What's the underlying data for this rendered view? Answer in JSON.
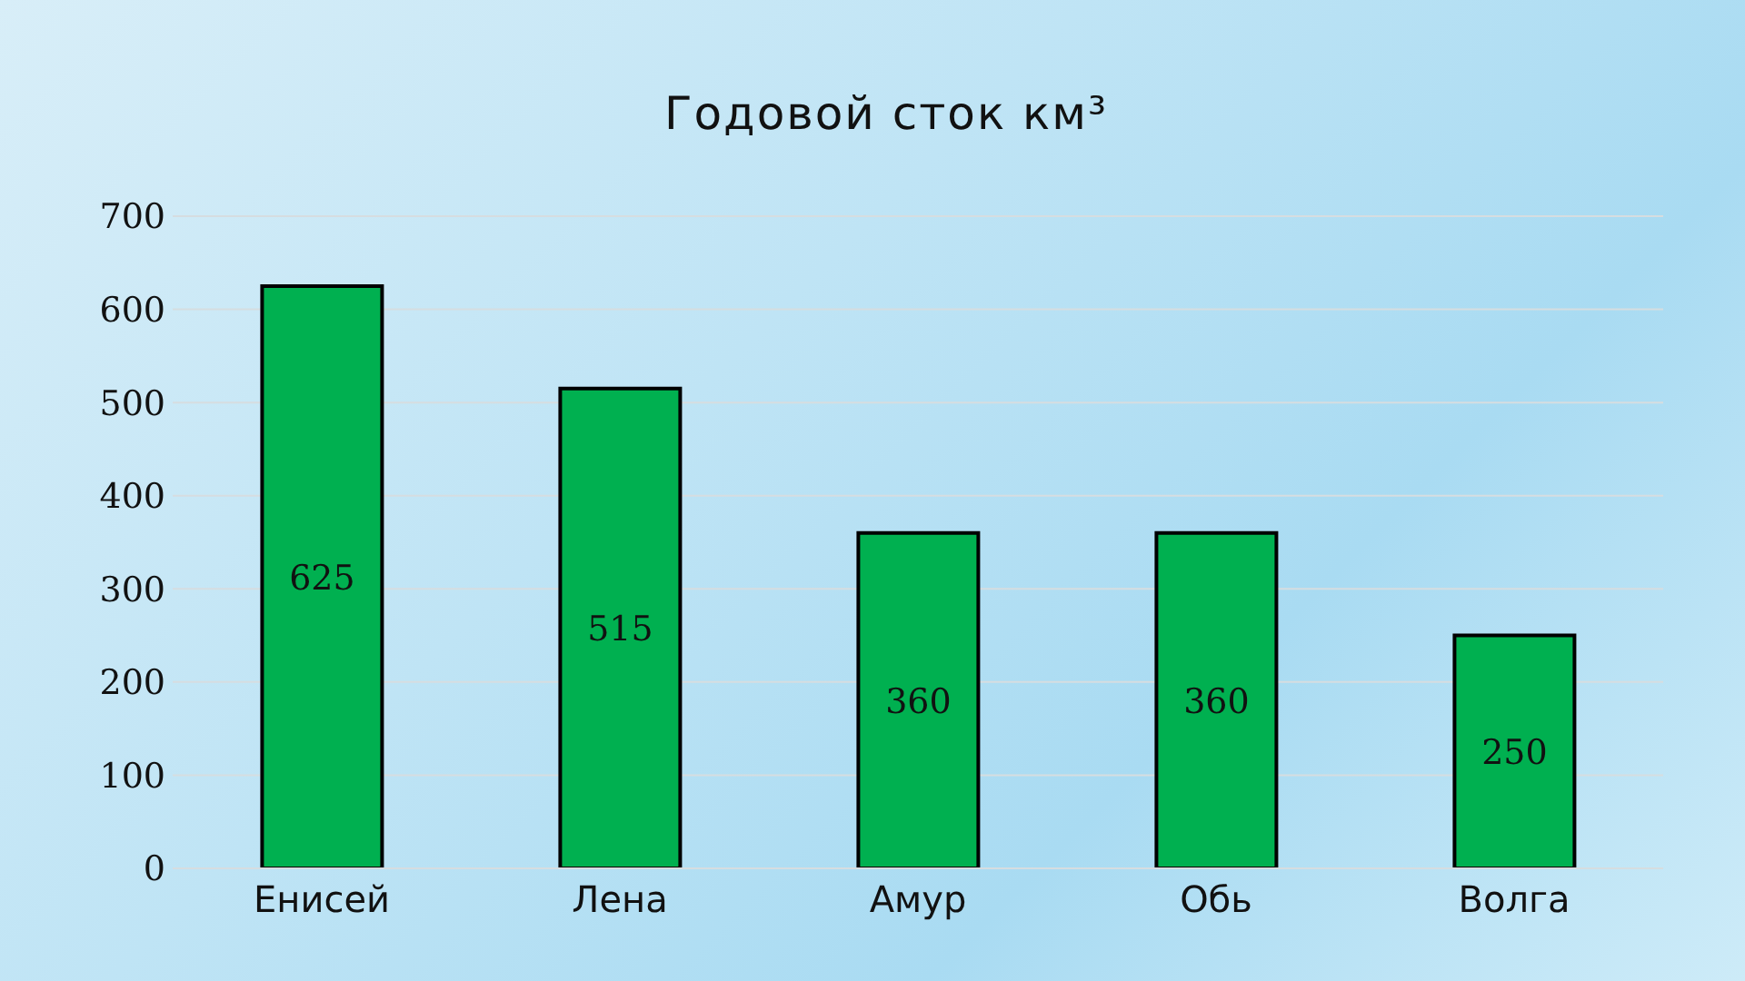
{
  "chart_data": {
    "type": "bar",
    "title": "Годовой сток км³",
    "categories": [
      "Енисей",
      "Лена",
      "Амур",
      "Обь",
      "Волга"
    ],
    "values": [
      625,
      515,
      360,
      360,
      250
    ],
    "color": "#00b050",
    "ylim": [
      0,
      700
    ],
    "yticks": [
      0,
      100,
      200,
      300,
      400,
      500,
      600,
      700
    ],
    "grid": "y",
    "data_labels": true
  }
}
